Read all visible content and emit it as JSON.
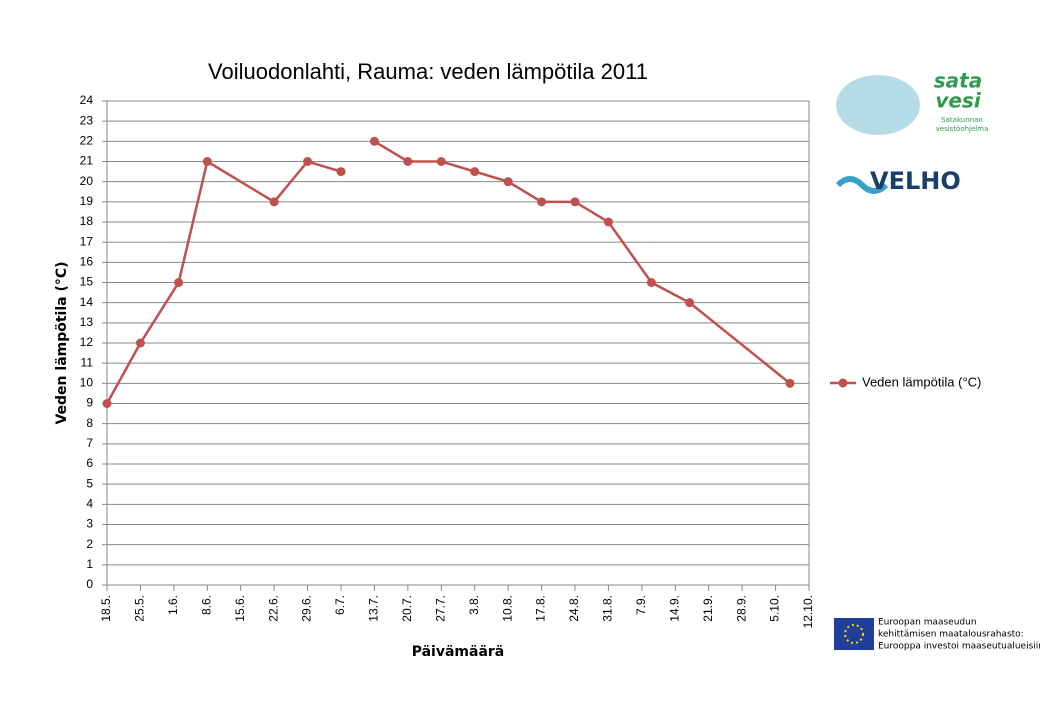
{
  "chart_data": {
    "type": "line",
    "title": "Voiluodonlahti, Rauma: veden lämpötila 2011",
    "x_label": "Päivämäärä",
    "y_label": "Veden lämpötila (°C)",
    "series": [
      {
        "name": "Veden lämpötila (°C)",
        "color": "#c0504d",
        "x": [
          "2011-05-18",
          "2011-05-25",
          "2011-06-02",
          "2011-06-08",
          "2011-06-22",
          "2011-06-29",
          "2011-07-06",
          null,
          "2011-07-13",
          "2011-07-20",
          "2011-07-27",
          "2011-08-03",
          "2011-08-10",
          "2011-08-17",
          "2011-08-24",
          "2011-08-31",
          "2011-09-09",
          "2011-09-17",
          "2011-10-08"
        ],
        "values": [
          9,
          12,
          15,
          21,
          19,
          21,
          20.5,
          null,
          22,
          21,
          21,
          20.5,
          20,
          19,
          19,
          18,
          15,
          14,
          10
        ]
      }
    ],
    "xlim": [
      "2011-05-18",
      "2011-10-12"
    ],
    "xticks": [
      {
        "value": "2011-05-18",
        "label": "18.5."
      },
      {
        "value": "2011-05-25",
        "label": "25.5."
      },
      {
        "value": "2011-06-01",
        "label": "1.6."
      },
      {
        "value": "2011-06-08",
        "label": "8.6."
      },
      {
        "value": "2011-06-15",
        "label": "15.6."
      },
      {
        "value": "2011-06-22",
        "label": "22.6."
      },
      {
        "value": "2011-06-29",
        "label": "29.6."
      },
      {
        "value": "2011-07-06",
        "label": "6.7."
      },
      {
        "value": "2011-07-13",
        "label": "13.7."
      },
      {
        "value": "2011-07-20",
        "label": "20.7."
      },
      {
        "value": "2011-07-27",
        "label": "27.7."
      },
      {
        "value": "2011-08-03",
        "label": "3.8."
      },
      {
        "value": "2011-08-10",
        "label": "10.8."
      },
      {
        "value": "2011-08-17",
        "label": "17.8."
      },
      {
        "value": "2011-08-24",
        "label": "24.8."
      },
      {
        "value": "2011-08-31",
        "label": "31.8."
      },
      {
        "value": "2011-09-07",
        "label": "7.9."
      },
      {
        "value": "2011-09-14",
        "label": "14.9."
      },
      {
        "value": "2011-09-21",
        "label": "21.9."
      },
      {
        "value": "2011-09-28",
        "label": "28.9."
      },
      {
        "value": "2011-10-05",
        "label": "5.10."
      },
      {
        "value": "2011-10-12",
        "label": "12.10."
      }
    ],
    "ylim": [
      0,
      24
    ],
    "yticks": [
      0,
      1,
      2,
      3,
      4,
      5,
      6,
      7,
      8,
      9,
      10,
      11,
      12,
      13,
      14,
      15,
      16,
      17,
      18,
      19,
      20,
      21,
      22,
      23,
      24
    ],
    "grid": true,
    "legend": "right"
  },
  "logos": {
    "velho": "VELHO",
    "sata": "sata",
    "vesi": "vesi",
    "satakunnan": "Satakunnan",
    "vesistoohjelma": "vesistöohjelma",
    "eu_line1": "Euroopan maaseudun",
    "eu_line2": "kehittämisen maatalousrahasto:",
    "eu_line3": "Eurooppa investoi maaseutualueisiin"
  }
}
